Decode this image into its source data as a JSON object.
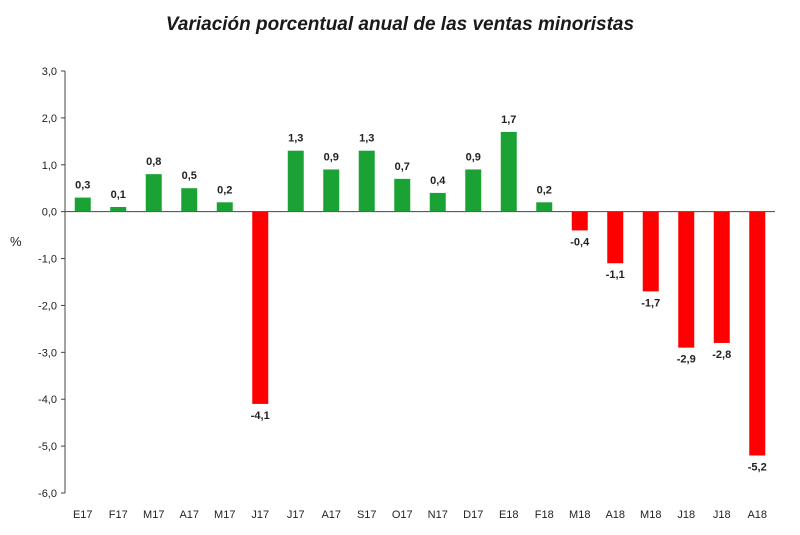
{
  "chart_data": {
    "type": "bar",
    "title": "Variación porcentual anual de las ventas minoristas",
    "ylabel": "%",
    "xlabel": "",
    "ylim": [
      -6.0,
      3.0
    ],
    "yticks": [
      "3,0",
      "2,0",
      "1,0",
      "0,0",
      "-1,0",
      "-2,0",
      "-3,0",
      "-4,0",
      "-5,0",
      "-6,0"
    ],
    "ytick_values": [
      3,
      2,
      1,
      0,
      -1,
      -2,
      -3,
      -4,
      -5,
      -6
    ],
    "categories": [
      "E17",
      "F17",
      "M17",
      "A17",
      "M17",
      "J17",
      "J17",
      "A17",
      "S17",
      "O17",
      "N17",
      "D17",
      "E18",
      "F18",
      "M18",
      "A18",
      "M18",
      "J18",
      "J18",
      "A18"
    ],
    "values": [
      0.3,
      0.1,
      0.8,
      0.5,
      0.2,
      -4.1,
      1.3,
      0.9,
      1.3,
      0.7,
      0.4,
      0.9,
      1.7,
      0.2,
      -0.4,
      -1.1,
      -1.7,
      -2.9,
      -2.8,
      -5.2
    ],
    "labels": [
      "0,3",
      "0,1",
      "0,8",
      "0,5",
      "0,2",
      "-4,1",
      "1,3",
      "0,9",
      "1,3",
      "0,7",
      "0,4",
      "0,9",
      "1,7",
      "0,2",
      "-0,4",
      "-1,1",
      "-1,7",
      "-2,9",
      "-2,8",
      "-5,2"
    ],
    "colors": {
      "positive": "#1aa334",
      "negative": "#ff0000"
    },
    "grid": false,
    "legend": "none"
  }
}
